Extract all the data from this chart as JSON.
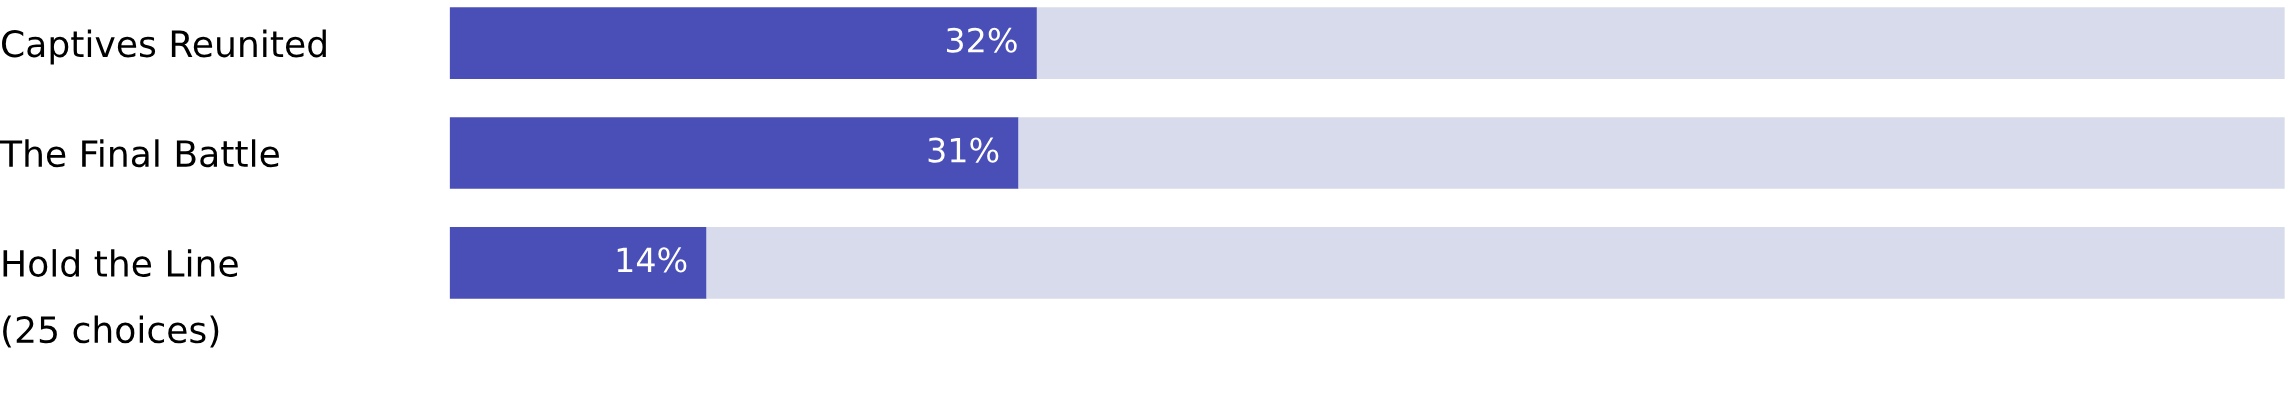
{
  "chart_data": {
    "type": "bar",
    "orientation": "horizontal",
    "stacked": true,
    "categories": [
      "Captives Reunited",
      "The Final Battle",
      "Hold the Line"
    ],
    "series": [
      {
        "color": "#4a4fb8",
        "values": [
          32,
          31,
          14
        ],
        "value_labels": [
          "32%",
          "31%",
          "14%"
        ]
      },
      {
        "color": "#d8dbeb",
        "values": [
          68,
          69,
          86
        ]
      }
    ],
    "xlim": [
      0,
      100
    ],
    "tick_labels": "y",
    "grid": false,
    "legend": false,
    "annotations": [
      "(25 choices)"
    ]
  }
}
